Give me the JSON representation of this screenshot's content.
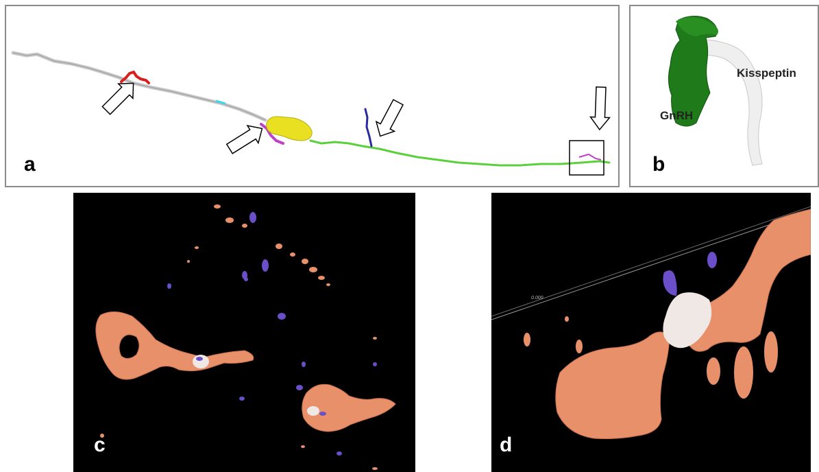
{
  "panels": {
    "a": {
      "letter": "a"
    },
    "b": {
      "letter": "b",
      "kisspeptin_label": "Kisspeptin",
      "gnrh_label": "GnRH"
    },
    "c": {
      "letter": "c"
    },
    "d": {
      "letter": "d",
      "scale_text": "0.000"
    }
  },
  "colors": {
    "kisspeptin_fiber": "#c8c8c8",
    "gnrh_soma": "#e8e020",
    "gnrh_fiber": "#5ad03a",
    "contact_red": "#d91e1e",
    "contact_magenta": "#c040c8",
    "contact_blue": "#2a2aa0",
    "contact_cyan": "#40d8e8",
    "gnrh_3d": "#1f7a1a",
    "render_orange": "#e8906a",
    "render_purple": "#6a4fc8"
  }
}
